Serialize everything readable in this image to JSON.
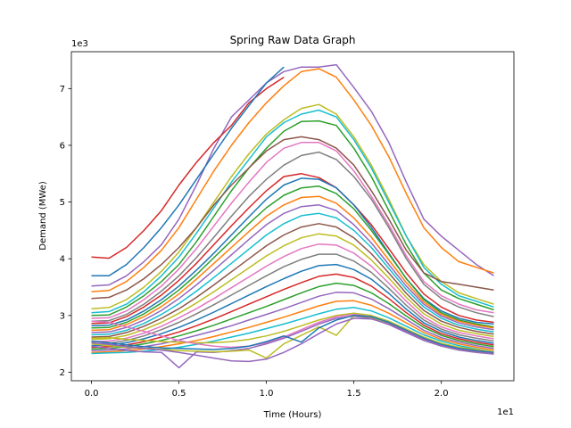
{
  "chart_data": {
    "type": "line",
    "title": "Spring Raw Data Graph",
    "xlabel": "Time (Hours)",
    "ylabel": "Demand (MWe)",
    "x_offset_label": "1e1",
    "y_offset_label": "1e3",
    "xlim": [
      -1.15,
      24.15
    ],
    "ylim": [
      1850,
      7650
    ],
    "x_ticks": [
      0,
      5,
      10,
      15,
      20
    ],
    "x_tick_labels": [
      "0.0",
      "0.5",
      "1.0",
      "1.5",
      "2.0"
    ],
    "y_ticks": [
      2000,
      3000,
      4000,
      5000,
      6000,
      7000
    ],
    "y_tick_labels": [
      "2",
      "3",
      "4",
      "5",
      "6",
      "7"
    ],
    "grid": false,
    "legend": "none",
    "note": "Plot shows several hundred daily load profiles; a representative subset of distinctly visible series is listed.",
    "x": [
      0,
      1,
      2,
      3,
      4,
      5,
      6,
      7,
      8,
      9,
      10,
      11,
      12,
      13,
      14,
      15,
      16,
      17,
      18,
      19,
      20,
      21,
      22,
      23
    ],
    "series": [
      {
        "color": "#9467bd",
        "values": [
          3520,
          3540,
          3700,
          3950,
          4250,
          4700,
          5300,
          5950,
          6500,
          6800,
          7100,
          7300,
          7380,
          7380,
          7420,
          7020,
          6600,
          6050,
          5350,
          4700,
          4400,
          4150,
          3900,
          3700
        ]
      },
      {
        "color": "#ff7f0e",
        "values": [
          3420,
          3440,
          3600,
          3850,
          4150,
          4550,
          5050,
          5550,
          6000,
          6400,
          6750,
          7050,
          7300,
          7350,
          7200,
          6800,
          6350,
          5800,
          5150,
          4550,
          4200,
          3950,
          3850,
          3750
        ]
      },
      {
        "color": "#d62728",
        "values": [
          4030,
          4010,
          4200,
          4500,
          4850,
          5300,
          5700,
          6050,
          6350,
          6750,
          7000,
          7200,
          null,
          null,
          null,
          null,
          null,
          null,
          null,
          null,
          null,
          null,
          null,
          null
        ]
      },
      {
        "color": "#1f77b4",
        "values": [
          3700,
          3700,
          3900,
          4200,
          4550,
          4950,
          5400,
          5850,
          6300,
          6700,
          7100,
          7380,
          null,
          null,
          null,
          null,
          null,
          null,
          null,
          null,
          null,
          null,
          null,
          null
        ]
      },
      {
        "color": "#bcbd22",
        "values": [
          3120,
          3140,
          3280,
          3500,
          3780,
          4120,
          4550,
          5000,
          5450,
          5850,
          6200,
          6450,
          6650,
          6720,
          6550,
          6150,
          5650,
          5050,
          4400,
          3900,
          3600,
          3400,
          3300,
          3200
        ]
      },
      {
        "color": "#17becf",
        "values": [
          3050,
          3070,
          3200,
          3420,
          3700,
          4030,
          4450,
          4900,
          5350,
          5750,
          6150,
          6400,
          6550,
          6620,
          6500,
          6100,
          5600,
          5000,
          4400,
          3850,
          3550,
          3350,
          3250,
          3150
        ]
      },
      {
        "color": "#2ca02c",
        "values": [
          3000,
          3010,
          3150,
          3350,
          3600,
          3900,
          4300,
          4750,
          5200,
          5600,
          5950,
          6250,
          6420,
          6430,
          6350,
          5950,
          5450,
          4850,
          4250,
          3750,
          3450,
          3300,
          3200,
          3100
        ]
      },
      {
        "color": "#8c564b",
        "values": [
          3300,
          3320,
          3450,
          3650,
          3900,
          4200,
          4550,
          4950,
          5300,
          5600,
          5900,
          6100,
          6150,
          6100,
          5950,
          5650,
          5200,
          4700,
          4150,
          3750,
          3600,
          3550,
          3500,
          3450
        ]
      },
      {
        "color": "#e377c2",
        "values": [
          2950,
          2960,
          3080,
          3280,
          3520,
          3820,
          4180,
          4580,
          4980,
          5350,
          5700,
          5950,
          6050,
          6050,
          5900,
          5550,
          5100,
          4600,
          4050,
          3600,
          3350,
          3200,
          3100,
          3050
        ]
      },
      {
        "color": "#7f7f7f",
        "values": [
          2900,
          2910,
          3020,
          3200,
          3430,
          3700,
          4020,
          4380,
          4750,
          5100,
          5400,
          5650,
          5820,
          5880,
          5750,
          5450,
          5050,
          4550,
          4000,
          3550,
          3300,
          3150,
          3050,
          2980
        ]
      },
      {
        "color": "#d62728",
        "values": [
          2860,
          2870,
          2980,
          3150,
          3360,
          3620,
          3920,
          4250,
          4580,
          4900,
          5200,
          5450,
          5500,
          5430,
          5250,
          4950,
          4600,
          4180,
          3750,
          3380,
          3150,
          3000,
          2920,
          2880
        ]
      },
      {
        "color": "#1f77b4",
        "values": [
          2820,
          2830,
          2920,
          3080,
          3280,
          3520,
          3800,
          4100,
          4420,
          4740,
          5050,
          5300,
          5420,
          5400,
          5250,
          4950,
          4550,
          4100,
          3650,
          3300,
          3080,
          2950,
          2880,
          2850
        ]
      },
      {
        "color": "#2ca02c",
        "values": [
          2780,
          2790,
          2880,
          3030,
          3220,
          3450,
          3720,
          4020,
          4320,
          4620,
          4900,
          5120,
          5250,
          5280,
          5150,
          4880,
          4500,
          4080,
          3650,
          3280,
          3050,
          2920,
          2850,
          2800
        ]
      },
      {
        "color": "#ff7f0e",
        "values": [
          2740,
          2750,
          2840,
          2980,
          3160,
          3380,
          3640,
          3920,
          4200,
          4480,
          4750,
          4950,
          5080,
          5100,
          4980,
          4720,
          4380,
          3980,
          3580,
          3240,
          3020,
          2900,
          2830,
          2780
        ]
      },
      {
        "color": "#9467bd",
        "values": [
          2700,
          2710,
          2790,
          2920,
          3090,
          3300,
          3540,
          3800,
          4070,
          4340,
          4600,
          4800,
          4920,
          4950,
          4850,
          4600,
          4280,
          3900,
          3520,
          3200,
          2990,
          2870,
          2800,
          2750
        ]
      },
      {
        "color": "#17becf",
        "values": [
          2660,
          2670,
          2740,
          2860,
          3020,
          3210,
          3430,
          3670,
          3920,
          4170,
          4420,
          4620,
          4760,
          4800,
          4720,
          4500,
          4200,
          3830,
          3460,
          3150,
          2950,
          2830,
          2760,
          2710
        ]
      },
      {
        "color": "#8c564b",
        "values": [
          2620,
          2630,
          2700,
          2810,
          2950,
          3120,
          3320,
          3540,
          3770,
          4000,
          4230,
          4420,
          4560,
          4620,
          4560,
          4370,
          4090,
          3750,
          3390,
          3090,
          2900,
          2790,
          2720,
          2670
        ]
      },
      {
        "color": "#bcbd22",
        "values": [
          2580,
          2590,
          2650,
          2750,
          2880,
          3040,
          3220,
          3420,
          3630,
          3840,
          4050,
          4230,
          4370,
          4440,
          4400,
          4240,
          3980,
          3660,
          3320,
          3030,
          2850,
          2740,
          2680,
          2630
        ]
      },
      {
        "color": "#e377c2",
        "values": [
          2540,
          2550,
          2600,
          2690,
          2810,
          2960,
          3120,
          3300,
          3490,
          3680,
          3870,
          4040,
          4180,
          4260,
          4240,
          4100,
          3870,
          3570,
          3250,
          2970,
          2800,
          2700,
          2640,
          2590
        ]
      },
      {
        "color": "#7f7f7f",
        "values": [
          2500,
          2510,
          2560,
          2640,
          2750,
          2880,
          3030,
          3190,
          3360,
          3530,
          3700,
          3860,
          3990,
          4080,
          4080,
          3960,
          3760,
          3480,
          3180,
          2920,
          2760,
          2660,
          2600,
          2550
        ]
      },
      {
        "color": "#1f77b4",
        "values": [
          2470,
          2480,
          2520,
          2590,
          2680,
          2790,
          2920,
          3060,
          3210,
          3360,
          3510,
          3650,
          3780,
          3880,
          3900,
          3810,
          3640,
          3390,
          3110,
          2870,
          2720,
          2620,
          2560,
          2510
        ]
      },
      {
        "color": "#d62728",
        "values": [
          2440,
          2450,
          2480,
          2540,
          2620,
          2710,
          2820,
          2940,
          3070,
          3200,
          3330,
          3460,
          3580,
          3690,
          3730,
          3670,
          3520,
          3300,
          3050,
          2830,
          2680,
          2590,
          2530,
          2480
        ]
      },
      {
        "color": "#2ca02c",
        "values": [
          2410,
          2420,
          2450,
          2500,
          2560,
          2640,
          2730,
          2830,
          2940,
          3050,
          3160,
          3280,
          3400,
          3510,
          3570,
          3530,
          3400,
          3210,
          2990,
          2790,
          2650,
          2560,
          2500,
          2450
        ]
      },
      {
        "color": "#9467bd",
        "values": [
          2380,
          2390,
          2410,
          2450,
          2500,
          2570,
          2650,
          2730,
          2820,
          2920,
          3020,
          3120,
          3230,
          3340,
          3410,
          3400,
          3290,
          3120,
          2930,
          2740,
          2610,
          2530,
          2470,
          2420
        ]
      },
      {
        "color": "#ff7f0e",
        "values": [
          2350,
          2360,
          2380,
          2410,
          2450,
          2500,
          2560,
          2630,
          2710,
          2790,
          2880,
          2970,
          3070,
          3170,
          3250,
          3260,
          3180,
          3040,
          2870,
          2700,
          2580,
          2500,
          2440,
          2390
        ]
      },
      {
        "color": "#17becf",
        "values": [
          2330,
          2340,
          2350,
          2370,
          2400,
          2440,
          2490,
          2550,
          2620,
          2690,
          2770,
          2850,
          2940,
          3030,
          3110,
          3140,
          3080,
          2960,
          2810,
          2660,
          2550,
          2470,
          2410,
          2360
        ]
      },
      {
        "color": "#bcbd22",
        "values": [
          2600,
          2610,
          2580,
          2560,
          2540,
          2530,
          2520,
          2520,
          2540,
          2580,
          2640,
          2720,
          2820,
          2920,
          3000,
          3040,
          3000,
          2900,
          2760,
          2620,
          2510,
          2440,
          2400,
          2360
        ]
      },
      {
        "color": "#e377c2",
        "values": [
          2900,
          2880,
          2800,
          2720,
          2640,
          2560,
          2500,
          2460,
          2440,
          2460,
          2520,
          2620,
          2750,
          2880,
          2980,
          3020,
          2980,
          2870,
          2720,
          2580,
          2470,
          2400,
          2360,
          2330
        ]
      },
      {
        "color": "#9467bd",
        "values": [
          2460,
          2420,
          2380,
          2360,
          2350,
          2080,
          2360,
          2350,
          2380,
          2420,
          2500,
          2600,
          2720,
          2850,
          2950,
          2990,
          2950,
          2840,
          2700,
          2560,
          2460,
          2390,
          2350,
          2320
        ]
      },
      {
        "color": "#bcbd22",
        "values": [
          2500,
          2470,
          2440,
          2420,
          2400,
          2380,
          2370,
          2360,
          2370,
          2390,
          2250,
          2500,
          2650,
          2800,
          2650,
          3000,
          2970,
          2860,
          2720,
          2580,
          2470,
          2400,
          2360,
          2330
        ]
      },
      {
        "color": "#1f77b4",
        "values": [
          2550,
          2520,
          2480,
          2450,
          2430,
          2420,
          2410,
          2400,
          2420,
          2460,
          2540,
          2640,
          2530,
          2780,
          2920,
          3000,
          2980,
          2880,
          2740,
          2600,
          2490,
          2420,
          2380,
          2350
        ]
      },
      {
        "color": "#9467bd",
        "values": [
          2520,
          2490,
          2450,
          2420,
          2390,
          2350,
          2300,
          2250,
          2200,
          2190,
          2230,
          2350,
          2500,
          2680,
          2850,
          2950,
          2940,
          2850,
          2720,
          2580,
          2470,
          2400,
          2360,
          2330
        ]
      }
    ]
  }
}
